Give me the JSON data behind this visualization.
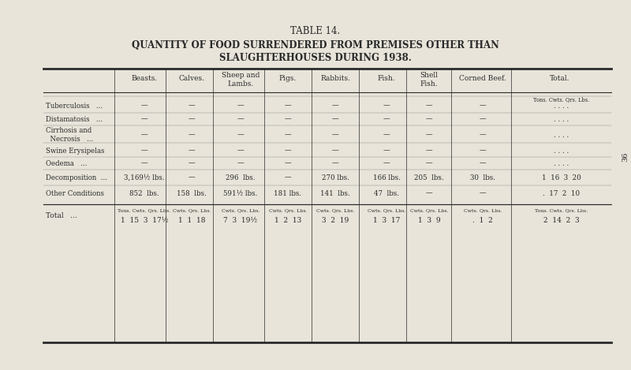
{
  "title1": "TABLE 14.",
  "title2": "QUANTITY OF FOOD SURRENDERED FROM PREMISES OTHER THAN",
  "title3": "SLAUGHTERHOUSES DURING 1938.",
  "bg_color": "#e8e4da",
  "text_color": "#2a2a2a",
  "col_headers": [
    "",
    "Beasts.",
    "Calves.",
    "Sheep and\nLambs.",
    "Pigs.",
    "Rabbits.",
    "Fish.",
    "Shell\nFish.",
    "Corned Beef.",
    "Total."
  ],
  "subheader_tuberculosis": "Tons. Cwts. Qrs. Lbs.",
  "rows": [
    {
      "label": "Tuberculosis   ...",
      "beasts": "—",
      "calves": "—",
      "sheep": "—",
      "pigs": "—",
      "rabbits": "—",
      "fish": "—",
      "shellfish": "—",
      "cornedbeef": "—",
      "total": ". . . ."
    },
    {
      "label": "Distamatosis   ...",
      "beasts": "—",
      "calves": "—",
      "sheep": "—",
      "pigs": "—",
      "rabbits": "—",
      "fish": "—",
      "shellfish": "—",
      "cornedbeef": "—",
      "total": ". . . ."
    },
    {
      "label": "Cirrhosis and\n  Necrosis   ...",
      "beasts": "—",
      "calves": "—",
      "sheep": "—",
      "pigs": "—",
      "rabbits": "—",
      "fish": "—",
      "shellfish": "—",
      "cornedbeef": "—",
      "total": ". . . ."
    },
    {
      "label": "Swine Erysipelas",
      "beasts": "—",
      "calves": "—",
      "sheep": "—",
      "pigs": "—",
      "rabbits": "—",
      "fish": "—",
      "shellfish": "—",
      "cornedbeef": "—",
      "total": ". . . ."
    },
    {
      "label": "Oedema   ...",
      "beasts": "—",
      "calves": "—",
      "sheep": "—",
      "pigs": "—",
      "rabbits": "—",
      "fish": "—",
      "shellfish": "—",
      "cornedbeef": "—",
      "total": ". . . ."
    },
    {
      "label": "Decomposition  ...",
      "beasts": "3,169½ lbs.",
      "calves": "—",
      "sheep": "296  lbs.",
      "pigs": "—",
      "rabbits": "270 lbs.",
      "fish": "166 lbs.",
      "shellfish": "205  lbs.",
      "cornedbeef": "30  lbs.",
      "total": "1  16  3  20"
    },
    {
      "label": "Other Conditions",
      "beasts": "852  lbs.",
      "calves": "158  lbs.",
      "sheep": "591½ lbs.",
      "pigs": "181 lbs.",
      "rabbits": "141  lbs.",
      "fish": "47  lbs.",
      "shellfish": "—",
      "cornedbeef": "—",
      "total": ".  17  2  10"
    }
  ],
  "total_row": {
    "label": "Total   ...",
    "beasts_sub": "Tons. Cwts. Qrs. Lbs.",
    "beasts_val": "1  15  3  17½",
    "calves_sub": "Cwts. Qrs. Lbs.",
    "calves_val": "1  1  18",
    "sheep_sub": "Cwts. Qrs. Lbs.",
    "sheep_val": "7  3  19½",
    "pigs_sub": "Cwts. Qrs. Lbs.",
    "pigs_val": "1  2  13",
    "rabbits_sub": "Cwts. Qrs. Lbs.",
    "rabbits_val": "3  2  19",
    "fish_sub": "Cwts. Qrs. Lbs.",
    "fish_val": "1  3  17",
    "shellfish_sub": "Cwts. Qrs. Lbs.",
    "shellfish_val": "1  3  9",
    "cornedbeef_sub": "Cwts. Qrs. Lbs.",
    "cornedbeef_val": ".  1  2",
    "total_sub": "Tons. Cwts. Qrs. Lbs.",
    "total_val": "2  14  2  3"
  },
  "page_number": "36"
}
